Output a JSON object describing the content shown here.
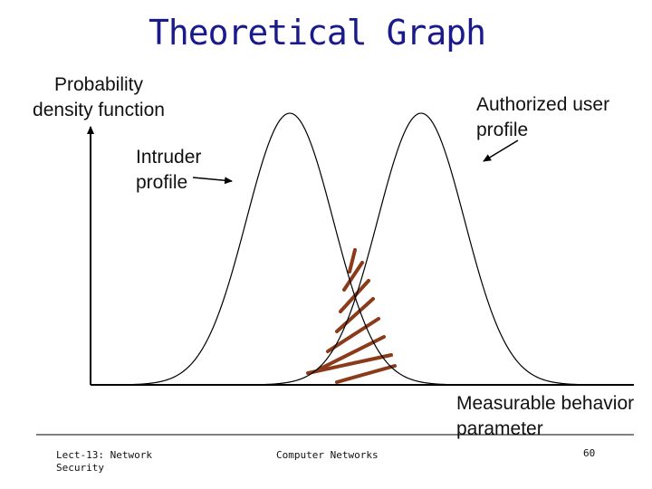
{
  "slide": {
    "title": "Theoretical Graph"
  },
  "diagram": {
    "y_axis_label": "Probability density function",
    "x_axis_label": "Measurable behavior parameter",
    "intruder_label": "Intruder profile",
    "authorized_label": "Authorized user profile",
    "curve_color": "#000000",
    "hatch_color": "#8b3a1a"
  },
  "footer": {
    "course": "Lect-13: Network Security",
    "center": "Computer Networks",
    "page": "60"
  }
}
